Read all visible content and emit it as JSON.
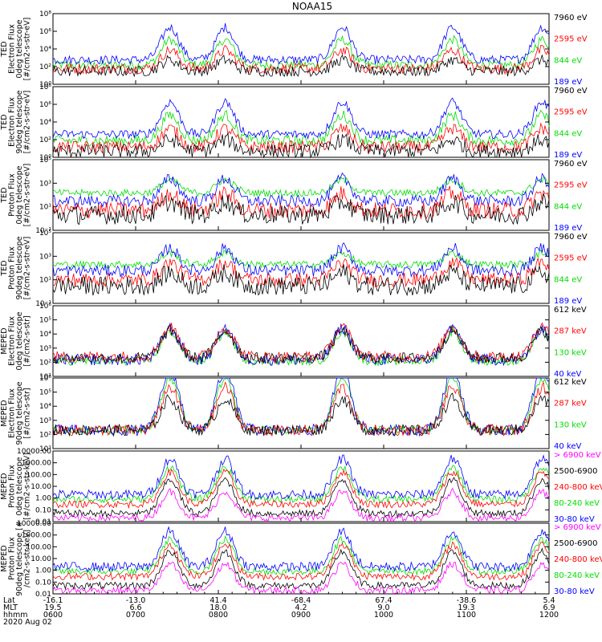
{
  "chart_data": {
    "type": "line",
    "title": "NOAA15",
    "colors": {
      "blue": "#0000ff",
      "red": "#ff0000",
      "green": "#00dd00",
      "black": "#000000",
      "magenta": "#ff00ff"
    },
    "panels": [
      {
        "ylabel": [
          "TED",
          "Electron Flux",
          "0deg telescope",
          "[#/cm2-s-str-eV]"
        ],
        "yscale": "log",
        "ylim": [
          1,
          100000000
        ],
        "yticks": [
          {
            "v": 1,
            "t": "10⁰"
          },
          {
            "v": 100,
            "t": "10²"
          },
          {
            "v": 10000,
            "t": "10⁴"
          },
          {
            "v": 1000000,
            "t": "10⁶"
          },
          {
            "v": 100000000,
            "t": "10⁸"
          }
        ],
        "series": [
          {
            "name": "7960 eV",
            "color": "black",
            "base": 30,
            "scale": 0.8,
            "noise": 0.6
          },
          {
            "name": "2595 eV",
            "color": "red",
            "base": 60,
            "scale": 1.3,
            "noise": 0.6
          },
          {
            "name": "844 eV",
            "color": "green",
            "base": 150,
            "scale": 1.8,
            "noise": 0.5
          },
          {
            "name": "189 eV",
            "color": "blue",
            "base": 600,
            "scale": 2.3,
            "noise": 0.5
          }
        ]
      },
      {
        "ylabel": [
          "TED",
          "Electron Flux",
          "90deg telescope",
          "[#/cm2-s-str-eV]"
        ],
        "yscale": "log",
        "ylim": [
          1,
          100000000
        ],
        "yticks": [
          {
            "v": 1,
            "t": "10⁰"
          },
          {
            "v": 100,
            "t": "10²"
          },
          {
            "v": 10000,
            "t": "10⁴"
          },
          {
            "v": 1000000,
            "t": "10⁶"
          },
          {
            "v": 100000000,
            "t": "10⁸"
          }
        ],
        "series": [
          {
            "name": "7960 eV",
            "color": "black",
            "base": 5,
            "scale": 0.8,
            "noise": 0.8
          },
          {
            "name": "2595 eV",
            "color": "red",
            "base": 15,
            "scale": 1.3,
            "noise": 0.7
          },
          {
            "name": "844 eV",
            "color": "green",
            "base": 80,
            "scale": 1.8,
            "noise": 0.6
          },
          {
            "name": "189 eV",
            "color": "blue",
            "base": 400,
            "scale": 2.3,
            "noise": 0.5
          }
        ]
      },
      {
        "ylabel": [
          "TED",
          "Proton Flux",
          "0deg telescope",
          "[#/cm2-s-str-eV]"
        ],
        "yscale": "log",
        "ylim": [
          0.1,
          100000
        ],
        "yticks": [
          {
            "v": 0.1,
            "t": "10⁻¹"
          },
          {
            "v": 10,
            "t": "10¹"
          },
          {
            "v": 1000,
            "t": "10³"
          },
          {
            "v": 100000,
            "t": "10⁵"
          }
        ],
        "series": [
          {
            "name": "7960 eV",
            "color": "black",
            "base": 2,
            "scale": 0.7,
            "noise": 0.8
          },
          {
            "name": "2595 eV",
            "color": "red",
            "base": 5,
            "scale": 0.9,
            "noise": 0.7
          },
          {
            "name": "844 eV",
            "color": "green",
            "base": 150,
            "scale": 0.7,
            "noise": 0.3
          },
          {
            "name": "189 eV",
            "color": "blue",
            "base": 30,
            "scale": 1.2,
            "noise": 0.5
          }
        ]
      },
      {
        "ylabel": [
          "TED",
          "Proton Flux",
          "90deg telescope",
          "[#/cm2-s-str-eV]"
        ],
        "yscale": "log",
        "ylim": [
          0.1,
          100000
        ],
        "yticks": [
          {
            "v": 0.1,
            "t": "10⁻¹"
          },
          {
            "v": 10,
            "t": "10¹"
          },
          {
            "v": 1000,
            "t": "10³"
          },
          {
            "v": 100000,
            "t": "10⁵"
          }
        ],
        "series": [
          {
            "name": "7960 eV",
            "color": "black",
            "base": 3,
            "scale": 0.7,
            "noise": 0.8
          },
          {
            "name": "2595 eV",
            "color": "red",
            "base": 10,
            "scale": 0.9,
            "noise": 0.6
          },
          {
            "name": "844 eV",
            "color": "green",
            "base": 200,
            "scale": 0.6,
            "noise": 0.3
          },
          {
            "name": "189 eV",
            "color": "blue",
            "base": 60,
            "scale": 1.2,
            "noise": 0.5
          }
        ]
      },
      {
        "ylabel": [
          "MEPED",
          "Electron Flux",
          "0deg telescope",
          "[#/cm2-s-str]"
        ],
        "yscale": "log",
        "ylim": [
          10,
          1000000
        ],
        "yticks": [
          {
            "v": 10,
            "t": "10¹"
          },
          {
            "v": 100,
            "t": "10²"
          },
          {
            "v": 1000,
            "t": "10³"
          },
          {
            "v": 10000,
            "t": "10⁴"
          },
          {
            "v": 100000,
            "t": "10⁵"
          },
          {
            "v": 1000000,
            "t": "10⁶"
          }
        ],
        "series": [
          {
            "name": "612 keV",
            "color": "black",
            "base": 200,
            "scale": 1.2,
            "noise": 0.4
          },
          {
            "name": "287 keV",
            "color": "red",
            "base": 250,
            "scale": 1.3,
            "noise": 0.4
          },
          {
            "name": "130 keV",
            "color": "green",
            "base": 120,
            "scale": 1.3,
            "noise": 0.3
          },
          {
            "name": "40 keV",
            "color": "blue",
            "base": 150,
            "scale": 1.4,
            "noise": 0.4
          }
        ]
      },
      {
        "ylabel": [
          "MEPED",
          "Electron Flux",
          "90deg telescope",
          "[#/cm2-s-str]"
        ],
        "yscale": "log",
        "ylim": [
          10,
          1000000
        ],
        "yticks": [
          {
            "v": 10,
            "t": "10¹"
          },
          {
            "v": 100,
            "t": "10²"
          },
          {
            "v": 1000,
            "t": "10³"
          },
          {
            "v": 10000,
            "t": "10⁴"
          },
          {
            "v": 100000,
            "t": "10⁵"
          },
          {
            "v": 1000000,
            "t": "10⁶"
          }
        ],
        "series": [
          {
            "name": "612 keV",
            "color": "black",
            "base": 200,
            "scale": 1.4,
            "noise": 0.4
          },
          {
            "name": "287 keV",
            "color": "red",
            "base": 200,
            "scale": 1.9,
            "noise": 0.4
          },
          {
            "name": "130 keV",
            "color": "green",
            "base": 200,
            "scale": 2.3,
            "noise": 0.3
          },
          {
            "name": "40 keV",
            "color": "blue",
            "base": 200,
            "scale": 2.7,
            "noise": 0.4
          }
        ]
      },
      {
        "ylabel": [
          "MEPED",
          "Proton Flux",
          "0deg telescope",
          "[#/cm2-s-str-keV]"
        ],
        "yscale": "log",
        "ylim": [
          0.01,
          10000
        ],
        "yticks": [
          {
            "v": 0.01,
            "t": "0.01"
          },
          {
            "v": 0.1,
            "t": "0.10"
          },
          {
            "v": 1,
            "t": "1.00"
          },
          {
            "v": 10,
            "t": "10.00"
          },
          {
            "v": 100,
            "t": "100.00"
          },
          {
            "v": 1000,
            "t": "1000.00"
          },
          {
            "v": 10000,
            "t": "10000.00"
          }
        ],
        "series": [
          {
            "name": "> 6900 keV",
            "color": "magenta",
            "base": 0.02,
            "scale": 1.4,
            "noise": 0.3
          },
          {
            "name": "2500-6900",
            "color": "black",
            "base": 0.05,
            "scale": 1.8,
            "noise": 0.3
          },
          {
            "name": "240-800 keV",
            "color": "red",
            "base": 0.3,
            "scale": 1.7,
            "noise": 0.3
          },
          {
            "name": "80-240 keV",
            "color": "green",
            "base": 0.8,
            "scale": 1.7,
            "noise": 0.3
          },
          {
            "name": "30-80 keV",
            "color": "blue",
            "base": 2,
            "scale": 1.9,
            "noise": 0.4
          }
        ]
      },
      {
        "ylabel": [
          "MEPED",
          "Proton Flux",
          "90deg telescope [#",
          "/cm2-s-str-keV]"
        ],
        "yscale": "log",
        "ylim": [
          0.01,
          10000
        ],
        "yticks": [
          {
            "v": 0.01,
            "t": "0.01"
          },
          {
            "v": 0.1,
            "t": "0.10"
          },
          {
            "v": 1,
            "t": "1.00"
          },
          {
            "v": 10,
            "t": "10.00"
          },
          {
            "v": 100,
            "t": "100.00"
          },
          {
            "v": 1000,
            "t": "1000.00"
          },
          {
            "v": 10000,
            "t": "10000.00"
          }
        ],
        "series": [
          {
            "name": "> 6900 keV",
            "color": "magenta",
            "base": 0.02,
            "scale": 1.4,
            "noise": 0.3
          },
          {
            "name": "2500-6900",
            "color": "black",
            "base": 0.05,
            "scale": 1.8,
            "noise": 0.3
          },
          {
            "name": "240-800 keV",
            "color": "red",
            "base": 0.3,
            "scale": 1.7,
            "noise": 0.3
          },
          {
            "name": "80-240 keV",
            "color": "green",
            "base": 0.8,
            "scale": 1.7,
            "noise": 0.3
          },
          {
            "name": "30-80 keV",
            "color": "blue",
            "base": 2,
            "scale": 1.9,
            "noise": 0.4
          }
        ]
      }
    ],
    "x_axis": {
      "row_labels": [
        "Lat",
        "MLT",
        "hhmm"
      ],
      "date": "2020 Aug 02",
      "xlim": [
        "0600",
        "1200"
      ],
      "ticks": [
        {
          "hhmm": "0600",
          "lat": "-16.1",
          "mlt": "19.5"
        },
        {
          "hhmm": "0700",
          "lat": "-13.0",
          "mlt": "6.6"
        },
        {
          "hhmm": "0800",
          "lat": "41.4",
          "mlt": "18.0"
        },
        {
          "hhmm": "0900",
          "lat": "-68.4",
          "mlt": "4.2"
        },
        {
          "hhmm": "1000",
          "lat": "67.4",
          "mlt": "9.0"
        },
        {
          "hhmm": "1100",
          "lat": "-38.6",
          "mlt": "19.3"
        },
        {
          "hhmm": "1200",
          "lat": "5.4",
          "mlt": "6.9"
        }
      ]
    }
  }
}
